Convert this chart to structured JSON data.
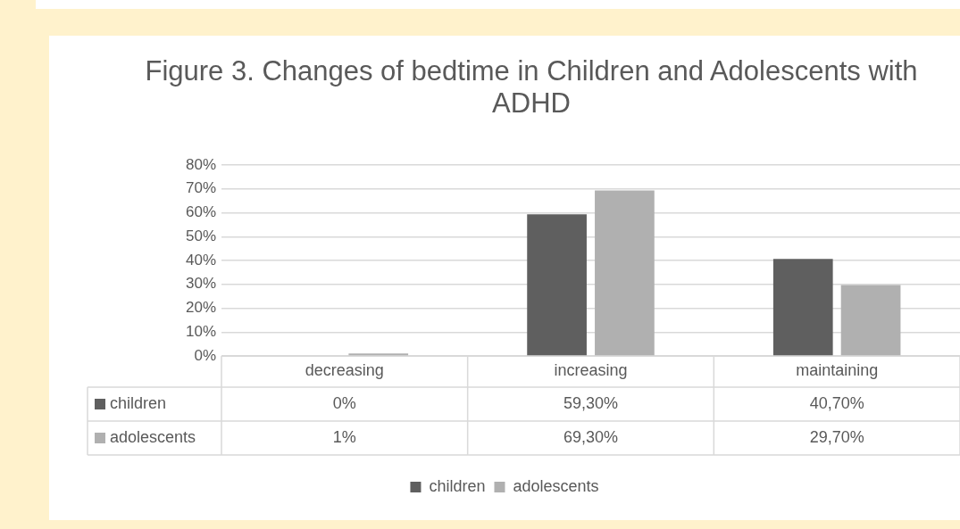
{
  "chart_data": {
    "type": "bar",
    "title": "Figure 3. Changes of bedtime in Children and Adolescents with ADHD",
    "categories": [
      "decreasing",
      "increasing",
      "maintaining"
    ],
    "series": [
      {
        "name": "children",
        "color": "#5f5f5f",
        "values": [
          0,
          59.3,
          40.7
        ],
        "value_labels": [
          "0%",
          "59,30%",
          "40,70%"
        ]
      },
      {
        "name": "adolescents",
        "color": "#b0b0b0",
        "values": [
          1,
          69.3,
          29.7
        ],
        "value_labels": [
          "1%",
          "69,30%",
          "29,70%"
        ]
      }
    ],
    "ylim": [
      0,
      80
    ],
    "yticks": [
      {
        "value": 0,
        "label": "0%"
      },
      {
        "value": 10,
        "label": "10%"
      },
      {
        "value": 20,
        "label": "20%"
      },
      {
        "value": 30,
        "label": "30%"
      },
      {
        "value": 40,
        "label": "40%"
      },
      {
        "value": 50,
        "label": "50%"
      },
      {
        "value": 60,
        "label": "60%"
      },
      {
        "value": 70,
        "label": "70%"
      },
      {
        "value": 80,
        "label": "80%"
      }
    ],
    "grid": "y",
    "legend": "bottom"
  }
}
